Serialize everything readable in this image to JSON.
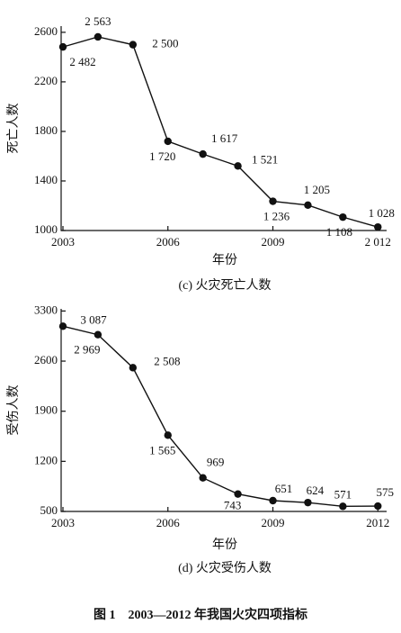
{
  "chart_data": [
    {
      "type": "line",
      "x_label": "年份",
      "y_label": "死亡人数",
      "caption": "(c) 火灾死亡人数",
      "x": [
        2003,
        2004,
        2005,
        2006,
        2007,
        2008,
        2009,
        2010,
        2011,
        2012
      ],
      "series": [
        {
          "name": "死亡人数",
          "color": "#111111",
          "values": [
            2482,
            2563,
            2500,
            1720,
            1617,
            1521,
            1236,
            1205,
            1108,
            1028
          ],
          "value_labels": [
            "2 482",
            "2 563",
            "2 500",
            "1 720",
            "1 617",
            "1 521",
            "1 236",
            "1 205",
            "1 108",
            "1 028"
          ]
        }
      ],
      "xlim": [
        2003,
        2012.25
      ],
      "xticks": [
        2003,
        2006,
        2009,
        {
          "value": 2012,
          "label": "2 012"
        }
      ],
      "ylim": [
        1000,
        2650
      ],
      "yticks": [
        1000,
        1400,
        1800,
        2200,
        2600
      ]
    },
    {
      "type": "line",
      "x_label": "年份",
      "y_label": "受伤人数",
      "caption": "(d) 火灾受伤人数",
      "x": [
        2003,
        2004,
        2005,
        2006,
        2007,
        2008,
        2009,
        2010,
        2011,
        2012
      ],
      "series": [
        {
          "name": "受伤人数",
          "color": "#111111",
          "values": [
            3087,
            2969,
            2508,
            1565,
            969,
            743,
            651,
            624,
            571,
            575
          ],
          "value_labels": [
            "3 087",
            "2 969",
            "2 508",
            "1 565",
            "969",
            "743",
            "651",
            "624",
            "571",
            "575"
          ]
        }
      ],
      "xlim": [
        2003,
        2012.25
      ],
      "xticks": [
        2003,
        2006,
        2009,
        2012
      ],
      "ylim": [
        500,
        3330
      ],
      "yticks": [
        500,
        1200,
        1900,
        2600,
        3300
      ]
    }
  ],
  "figure_caption": "图 1　2003—2012 年我国火灾四项指标"
}
